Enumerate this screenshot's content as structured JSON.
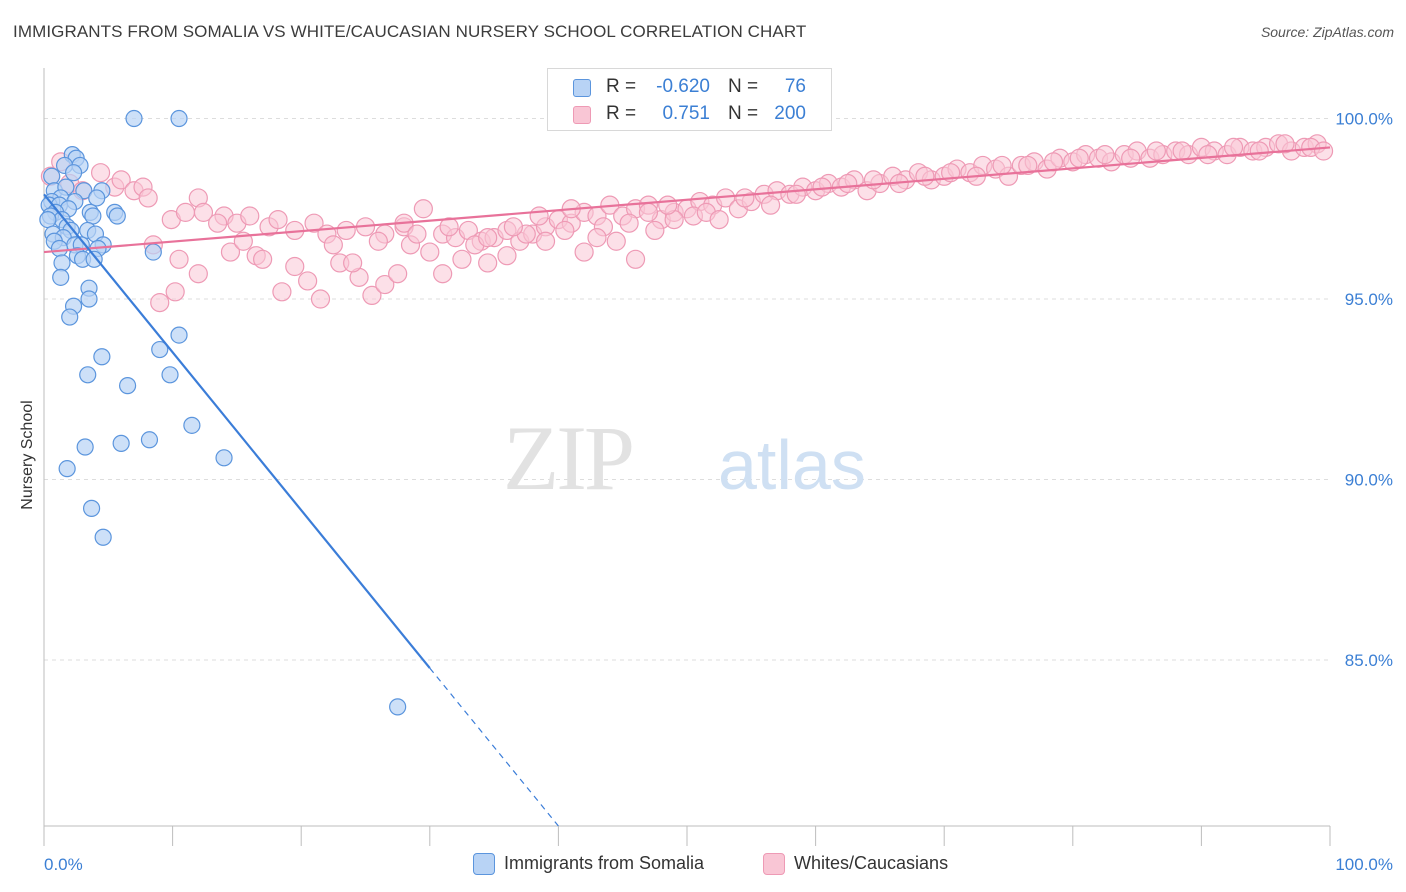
{
  "header": {
    "title": "IMMIGRANTS FROM SOMALIA VS WHITE/CAUCASIAN NURSERY SCHOOL CORRELATION CHART",
    "source": "Source: ZipAtlas.com"
  },
  "watermark": {
    "zip": "ZIP",
    "atlas": "atlas"
  },
  "colors": {
    "blue_fill": "#b8d3f5",
    "blue_stroke": "#5b95dd",
    "blue_line": "#3b7dd8",
    "pink_fill": "#f9c6d5",
    "pink_stroke": "#ee9ab5",
    "pink_line": "#e8729a",
    "grid": "#dddddd",
    "tick_label": "#3b7fd4"
  },
  "legend": {
    "rows": [
      {
        "r_label": "R =",
        "r_value": "-0.620",
        "n_label": "N =",
        "n_value": "76"
      },
      {
        "r_label": "R =",
        "r_value": "0.751",
        "n_label": "N =",
        "n_value": "200"
      }
    ]
  },
  "bottom_legend": {
    "items": [
      {
        "label": "Immigrants from Somalia"
      },
      {
        "label": "Whites/Caucasians"
      }
    ]
  },
  "chart_data": {
    "type": "scatter",
    "title": "IMMIGRANTS FROM SOMALIA VS WHITE/CAUCASIAN NURSERY SCHOOL CORRELATION CHART",
    "xlabel": "",
    "ylabel": "Nursery School",
    "xlim": [
      0,
      100
    ],
    "ylim": [
      80.4,
      101.4
    ],
    "y_ticks": [
      {
        "value": 85,
        "label": "85.0%"
      },
      {
        "value": 90,
        "label": "90.0%"
      },
      {
        "value": 95,
        "label": "95.0%"
      },
      {
        "value": 100,
        "label": "100.0%"
      }
    ],
    "x_tick_labels": [
      {
        "value": 0,
        "label": "0.0%"
      },
      {
        "value": 100,
        "label": "100.0%"
      }
    ],
    "grid": true,
    "legend_position": "top-center",
    "series": [
      {
        "name": "Immigrants from Somalia",
        "R": -0.62,
        "N": 76,
        "trend": {
          "x0": 0,
          "y0": 97.9,
          "x1": 40,
          "y1": 80.4,
          "solid_until_x": 30
        },
        "points": [
          [
            7,
            100
          ],
          [
            10.5,
            100
          ],
          [
            2.2,
            99.0
          ],
          [
            2.5,
            98.9
          ],
          [
            1.6,
            98.7
          ],
          [
            2.8,
            98.7
          ],
          [
            0.6,
            98.4
          ],
          [
            2.3,
            98.5
          ],
          [
            0.8,
            98.0
          ],
          [
            1.7,
            98.1
          ],
          [
            3.1,
            98.0
          ],
          [
            4.5,
            98.0
          ],
          [
            1.3,
            97.8
          ],
          [
            2.4,
            97.7
          ],
          [
            4.1,
            97.8
          ],
          [
            0.6,
            97.7
          ],
          [
            0.4,
            97.6
          ],
          [
            1.2,
            97.6
          ],
          [
            1.9,
            97.5
          ],
          [
            0.9,
            97.4
          ],
          [
            3.6,
            97.4
          ],
          [
            5.5,
            97.4
          ],
          [
            0.5,
            97.3
          ],
          [
            1.4,
            97.2
          ],
          [
            3.8,
            97.3
          ],
          [
            5.7,
            97.3
          ],
          [
            0.3,
            97.2
          ],
          [
            1.8,
            97.0
          ],
          [
            2.1,
            96.9
          ],
          [
            3.4,
            96.9
          ],
          [
            0.7,
            96.8
          ],
          [
            1.5,
            96.7
          ],
          [
            4.0,
            96.8
          ],
          [
            0.8,
            96.6
          ],
          [
            2.4,
            96.5
          ],
          [
            2.9,
            96.5
          ],
          [
            4.6,
            96.5
          ],
          [
            1.2,
            96.4
          ],
          [
            4.2,
            96.4
          ],
          [
            8.5,
            96.3
          ],
          [
            2.6,
            96.2
          ],
          [
            3.0,
            96.1
          ],
          [
            3.9,
            96.1
          ],
          [
            1.4,
            96.0
          ],
          [
            1.3,
            95.6
          ],
          [
            3.5,
            95.3
          ],
          [
            3.5,
            95.0
          ],
          [
            2.3,
            94.8
          ],
          [
            2.0,
            94.5
          ],
          [
            10.5,
            94.0
          ],
          [
            9.0,
            93.6
          ],
          [
            4.5,
            93.4
          ],
          [
            3.4,
            92.9
          ],
          [
            9.8,
            92.9
          ],
          [
            6.5,
            92.6
          ],
          [
            11.5,
            91.5
          ],
          [
            8.2,
            91.1
          ],
          [
            6.0,
            91.0
          ],
          [
            3.2,
            90.9
          ],
          [
            14.0,
            90.6
          ],
          [
            1.8,
            90.3
          ],
          [
            3.7,
            89.2
          ],
          [
            4.6,
            88.4
          ],
          [
            27.5,
            83.7
          ]
        ]
      },
      {
        "name": "Whites/Caucasians",
        "R": 0.751,
        "N": 200,
        "trend": {
          "x0": 0,
          "y0": 96.3,
          "x1": 100,
          "y1": 99.2
        },
        "points": [
          [
            0.5,
            98.4
          ],
          [
            1.3,
            98.8
          ],
          [
            2.0,
            98.2
          ],
          [
            3.0,
            98.0
          ],
          [
            4.4,
            98.5
          ],
          [
            5.5,
            98.1
          ],
          [
            6.0,
            98.3
          ],
          [
            7.0,
            98.0
          ],
          [
            7.7,
            98.1
          ],
          [
            8.1,
            97.8
          ],
          [
            9.9,
            97.2
          ],
          [
            11.0,
            97.4
          ],
          [
            12.0,
            97.8
          ],
          [
            12.4,
            97.4
          ],
          [
            14.0,
            97.3
          ],
          [
            15.0,
            97.1
          ],
          [
            16.0,
            97.3
          ],
          [
            17.5,
            97.0
          ],
          [
            18.2,
            97.2
          ],
          [
            19.5,
            96.9
          ],
          [
            21.0,
            97.1
          ],
          [
            22.0,
            96.8
          ],
          [
            23.5,
            96.9
          ],
          [
            25.0,
            97.0
          ],
          [
            26.5,
            96.8
          ],
          [
            28.0,
            97.0
          ],
          [
            29.5,
            97.5
          ],
          [
            31.0,
            96.8
          ],
          [
            32.0,
            96.7
          ],
          [
            33.0,
            96.9
          ],
          [
            34.0,
            96.6
          ],
          [
            35.0,
            96.7
          ],
          [
            36.0,
            96.9
          ],
          [
            37.0,
            96.6
          ],
          [
            38.0,
            96.8
          ],
          [
            39.0,
            97.0
          ],
          [
            40.0,
            97.2
          ],
          [
            41.0,
            97.1
          ],
          [
            42.0,
            97.4
          ],
          [
            43.0,
            97.3
          ],
          [
            44.0,
            97.6
          ],
          [
            45.0,
            97.3
          ],
          [
            46.0,
            97.5
          ],
          [
            47.0,
            97.6
          ],
          [
            48.0,
            97.2
          ],
          [
            49.0,
            97.4
          ],
          [
            50.0,
            97.5
          ],
          [
            51.0,
            97.7
          ],
          [
            52.0,
            97.6
          ],
          [
            53.0,
            97.8
          ],
          [
            54.0,
            97.5
          ],
          [
            55.0,
            97.7
          ],
          [
            56.0,
            97.9
          ],
          [
            57.0,
            98.0
          ],
          [
            58.0,
            97.9
          ],
          [
            59.0,
            98.1
          ],
          [
            60.0,
            98.0
          ],
          [
            61.0,
            98.2
          ],
          [
            62.0,
            98.1
          ],
          [
            63.0,
            98.3
          ],
          [
            64.0,
            98.0
          ],
          [
            65.0,
            98.2
          ],
          [
            66.0,
            98.4
          ],
          [
            67.0,
            98.3
          ],
          [
            68.0,
            98.5
          ],
          [
            69.0,
            98.3
          ],
          [
            70.0,
            98.4
          ],
          [
            71.0,
            98.6
          ],
          [
            72.0,
            98.5
          ],
          [
            73.0,
            98.7
          ],
          [
            74.0,
            98.6
          ],
          [
            75.0,
            98.4
          ],
          [
            76.0,
            98.7
          ],
          [
            77.0,
            98.8
          ],
          [
            78.0,
            98.6
          ],
          [
            79.0,
            98.9
          ],
          [
            80.0,
            98.8
          ],
          [
            81.0,
            99.0
          ],
          [
            82.0,
            98.9
          ],
          [
            83.0,
            98.8
          ],
          [
            84.0,
            99.0
          ],
          [
            85.0,
            99.1
          ],
          [
            86.0,
            98.9
          ],
          [
            87.0,
            99.0
          ],
          [
            88.0,
            99.1
          ],
          [
            89.0,
            99.0
          ],
          [
            90.0,
            99.2
          ],
          [
            91.0,
            99.1
          ],
          [
            92.0,
            99.0
          ],
          [
            93.0,
            99.2
          ],
          [
            94.0,
            99.1
          ],
          [
            95.0,
            99.2
          ],
          [
            96.0,
            99.3
          ],
          [
            97.0,
            99.1
          ],
          [
            98.0,
            99.2
          ],
          [
            99.0,
            99.3
          ],
          [
            8.5,
            96.5
          ],
          [
            10.5,
            96.1
          ],
          [
            12.0,
            95.7
          ],
          [
            14.5,
            96.3
          ],
          [
            16.5,
            96.2
          ],
          [
            18.5,
            95.2
          ],
          [
            19.5,
            95.9
          ],
          [
            20.5,
            95.5
          ],
          [
            21.5,
            95.0
          ],
          [
            23.0,
            96.0
          ],
          [
            24.5,
            95.6
          ],
          [
            25.5,
            95.1
          ],
          [
            26.5,
            95.4
          ],
          [
            27.5,
            95.7
          ],
          [
            28.5,
            96.5
          ],
          [
            30.0,
            96.3
          ],
          [
            31.0,
            95.7
          ],
          [
            32.5,
            96.1
          ],
          [
            33.5,
            96.5
          ],
          [
            34.5,
            96.0
          ],
          [
            36.0,
            96.2
          ],
          [
            37.5,
            96.8
          ],
          [
            39.0,
            96.6
          ],
          [
            40.5,
            96.9
          ],
          [
            42.0,
            96.3
          ],
          [
            43.5,
            97.0
          ],
          [
            44.5,
            96.6
          ],
          [
            46.0,
            96.1
          ],
          [
            47.5,
            96.9
          ],
          [
            49.0,
            97.2
          ],
          [
            9.0,
            94.9
          ],
          [
            10.2,
            95.2
          ],
          [
            13.5,
            97.1
          ],
          [
            15.5,
            96.6
          ],
          [
            17.0,
            96.1
          ],
          [
            22.5,
            96.5
          ],
          [
            24.0,
            96.0
          ],
          [
            26.0,
            96.6
          ],
          [
            28.0,
            97.1
          ],
          [
            29.0,
            96.8
          ],
          [
            31.5,
            97.0
          ],
          [
            34.5,
            96.7
          ],
          [
            36.5,
            97.0
          ],
          [
            38.5,
            97.3
          ],
          [
            41.0,
            97.5
          ],
          [
            43.0,
            96.7
          ],
          [
            45.5,
            97.1
          ],
          [
            47.0,
            97.4
          ],
          [
            48.5,
            97.6
          ],
          [
            50.5,
            97.3
          ],
          [
            51.5,
            97.4
          ],
          [
            52.5,
            97.2
          ],
          [
            54.5,
            97.8
          ],
          [
            56.5,
            97.6
          ],
          [
            58.5,
            97.9
          ],
          [
            60.5,
            98.1
          ],
          [
            62.5,
            98.2
          ],
          [
            64.5,
            98.3
          ],
          [
            66.5,
            98.2
          ],
          [
            68.5,
            98.4
          ],
          [
            70.5,
            98.5
          ],
          [
            72.5,
            98.4
          ],
          [
            74.5,
            98.7
          ],
          [
            76.5,
            98.7
          ],
          [
            78.5,
            98.8
          ],
          [
            80.5,
            98.9
          ],
          [
            82.5,
            99.0
          ],
          [
            84.5,
            98.9
          ],
          [
            86.5,
            99.1
          ],
          [
            88.5,
            99.1
          ],
          [
            90.5,
            99.0
          ],
          [
            92.5,
            99.2
          ],
          [
            94.5,
            99.1
          ],
          [
            96.5,
            99.3
          ],
          [
            98.5,
            99.2
          ],
          [
            99.5,
            99.1
          ]
        ]
      }
    ]
  }
}
